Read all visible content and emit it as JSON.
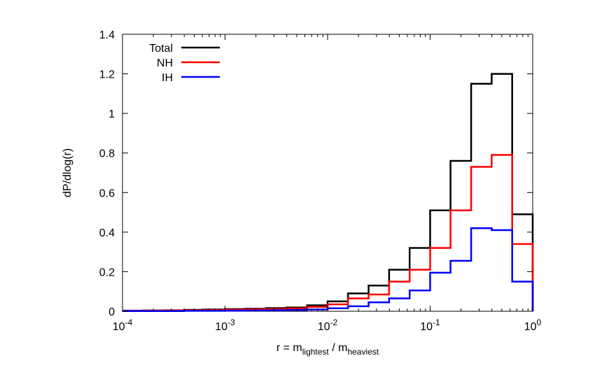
{
  "chart_data": {
    "type": "line",
    "style": "step-histogram",
    "title": "",
    "xlabel": "r = m_lightest / m_heaviest",
    "xlabel_parts": {
      "main": "r = m",
      "sub1": "lightest",
      "mid": " / m",
      "sub2": "heaviest"
    },
    "ylabel": "dP/dlog(r)",
    "xscale": "log",
    "xlim": [
      0.0001,
      1
    ],
    "ylim": [
      0,
      1.4
    ],
    "grid": false,
    "legend_position": "top-left",
    "x_ticks": [
      {
        "value": 0.0001,
        "base": "10",
        "exp": "-4"
      },
      {
        "value": 0.001,
        "base": "10",
        "exp": "-3"
      },
      {
        "value": 0.01,
        "base": "10",
        "exp": "-2"
      },
      {
        "value": 0.1,
        "base": "10",
        "exp": "-1"
      },
      {
        "value": 1,
        "base": "10",
        "exp": "0"
      }
    ],
    "y_ticks": [
      {
        "value": 0,
        "label": "0"
      },
      {
        "value": 0.2,
        "label": "0.2"
      },
      {
        "value": 0.4,
        "label": "0.4"
      },
      {
        "value": 0.6,
        "label": "0.6"
      },
      {
        "value": 0.8,
        "label": "0.8"
      },
      {
        "value": 1.0,
        "label": "1"
      },
      {
        "value": 1.2,
        "label": "1.2"
      },
      {
        "value": 1.4,
        "label": "1.4"
      }
    ],
    "bin_edges": [
      0.0001,
      0.000158,
      0.000251,
      0.000398,
      0.000631,
      0.001,
      0.00158,
      0.00251,
      0.00398,
      0.00631,
      0.01,
      0.0158,
      0.0251,
      0.0398,
      0.0631,
      0.1,
      0.158,
      0.251,
      0.398,
      0.631,
      1
    ],
    "series": [
      {
        "name": "Total",
        "color": "#000000",
        "values": [
          0.003,
          0.004,
          0.005,
          0.007,
          0.009,
          0.011,
          0.013,
          0.016,
          0.019,
          0.03,
          0.05,
          0.09,
          0.13,
          0.21,
          0.32,
          0.51,
          0.76,
          1.15,
          1.2,
          0.49
        ]
      },
      {
        "name": "NH",
        "color": "#ff0000",
        "values": [
          0.002,
          0.003,
          0.004,
          0.005,
          0.006,
          0.008,
          0.01,
          0.011,
          0.014,
          0.022,
          0.035,
          0.065,
          0.085,
          0.15,
          0.21,
          0.32,
          0.51,
          0.73,
          0.79,
          0.34
        ]
      },
      {
        "name": "IH",
        "color": "#0000ff",
        "values": [
          0.001,
          0.001,
          0.001,
          0.002,
          0.002,
          0.003,
          0.004,
          0.005,
          0.006,
          0.009,
          0.015,
          0.025,
          0.045,
          0.065,
          0.105,
          0.195,
          0.255,
          0.42,
          0.41,
          0.15
        ]
      }
    ]
  }
}
